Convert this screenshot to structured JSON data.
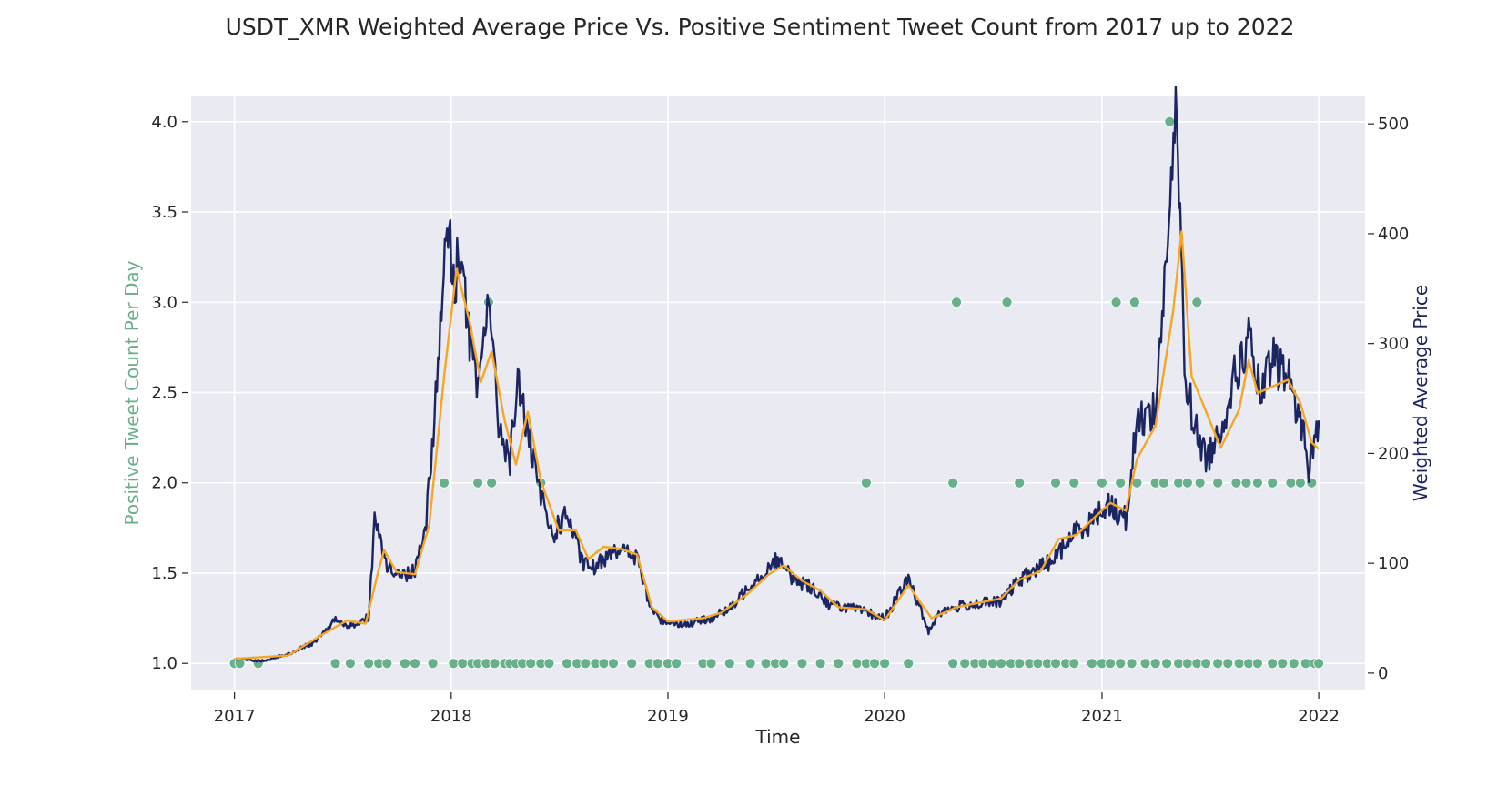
{
  "chart_data": {
    "type": "line+scatter",
    "title": "USDT_XMR Weighted Average Price Vs. Positive Sentiment Tweet Count from 2017 up to 2022",
    "xlabel": "Time",
    "ylabel_left": "Positive Tweet Count Per Day",
    "ylabel_right": "Weighted Average Price",
    "x_ticks": [
      "2017",
      "2018",
      "2019",
      "2020",
      "2021",
      "2022"
    ],
    "x_range": [
      "2016-10-20",
      "2022-03-20"
    ],
    "y_left_ticks": [
      "1.0",
      "1.5",
      "2.0",
      "2.5",
      "3.0",
      "3.5",
      "4.0"
    ],
    "y_left_range": [
      0.855,
      4.14
    ],
    "y_right_ticks": [
      "0",
      "100",
      "200",
      "300",
      "400",
      "500"
    ],
    "y_right_range": [
      -15,
      525
    ],
    "grid": true,
    "colors": {
      "background": "#eaeaf2",
      "price": "#1b2561",
      "rolling": "#f5a623",
      "tweets": "#68b08b",
      "left_label": "#68b08b",
      "right_label": "#1b2561"
    },
    "price_series": [
      [
        "2017-01-01",
        13
      ],
      [
        "2017-02-15",
        11
      ],
      [
        "2017-04-01",
        17
      ],
      [
        "2017-05-15",
        28
      ],
      [
        "2017-06-20",
        48
      ],
      [
        "2017-07-20",
        42
      ],
      [
        "2017-08-15",
        52
      ],
      [
        "2017-08-25",
        140
      ],
      [
        "2017-09-15",
        98
      ],
      [
        "2017-10-10",
        88
      ],
      [
        "2017-11-01",
        95
      ],
      [
        "2017-11-20",
        140
      ],
      [
        "2017-12-10",
        280
      ],
      [
        "2017-12-25",
        420
      ],
      [
        "2018-01-05",
        350
      ],
      [
        "2018-01-15",
        390
      ],
      [
        "2018-02-01",
        305
      ],
      [
        "2018-02-15",
        250
      ],
      [
        "2018-03-05",
        355
      ],
      [
        "2018-03-20",
        230
      ],
      [
        "2018-04-10",
        195
      ],
      [
        "2018-04-25",
        270
      ],
      [
        "2018-05-10",
        215
      ],
      [
        "2018-06-01",
        160
      ],
      [
        "2018-06-20",
        125
      ],
      [
        "2018-07-15",
        145
      ],
      [
        "2018-08-10",
        100
      ],
      [
        "2018-09-01",
        95
      ],
      [
        "2018-10-01",
        115
      ],
      [
        "2018-11-10",
        105
      ],
      [
        "2018-12-01",
        62
      ],
      [
        "2018-12-20",
        48
      ],
      [
        "2019-02-01",
        44
      ],
      [
        "2019-03-15",
        50
      ],
      [
        "2019-04-20",
        60
      ],
      [
        "2019-05-20",
        82
      ],
      [
        "2019-06-15",
        92
      ],
      [
        "2019-07-01",
        105
      ],
      [
        "2019-08-01",
        85
      ],
      [
        "2019-09-01",
        78
      ],
      [
        "2019-10-01",
        62
      ],
      [
        "2019-11-01",
        60
      ],
      [
        "2019-12-01",
        55
      ],
      [
        "2020-01-01",
        50
      ],
      [
        "2020-02-10",
        86
      ],
      [
        "2020-03-15",
        38
      ],
      [
        "2020-04-01",
        55
      ],
      [
        "2020-05-15",
        62
      ],
      [
        "2020-07-15",
        65
      ],
      [
        "2020-08-15",
        85
      ],
      [
        "2020-09-15",
        95
      ],
      [
        "2020-10-15",
        105
      ],
      [
        "2020-11-15",
        128
      ],
      [
        "2020-12-15",
        138
      ],
      [
        "2021-01-10",
        155
      ],
      [
        "2021-02-10",
        140
      ],
      [
        "2021-03-01",
        230
      ],
      [
        "2021-04-01",
        240
      ],
      [
        "2021-04-20",
        385
      ],
      [
        "2021-05-07",
        510
      ],
      [
        "2021-05-20",
        280
      ],
      [
        "2021-06-05",
        225
      ],
      [
        "2021-06-25",
        195
      ],
      [
        "2021-07-15",
        215
      ],
      [
        "2021-08-10",
        265
      ],
      [
        "2021-09-05",
        305
      ],
      [
        "2021-09-25",
        250
      ],
      [
        "2021-10-15",
        285
      ],
      [
        "2021-11-10",
        270
      ],
      [
        "2021-12-01",
        232
      ],
      [
        "2021-12-15",
        188
      ],
      [
        "2022-01-01",
        230
      ]
    ],
    "rolling_series": [
      [
        "2017-01-01",
        13
      ],
      [
        "2017-04-01",
        16
      ],
      [
        "2017-06-01",
        36
      ],
      [
        "2017-07-10",
        48
      ],
      [
        "2017-08-10",
        45
      ],
      [
        "2017-08-30",
        90
      ],
      [
        "2017-09-10",
        112
      ],
      [
        "2017-10-01",
        92
      ],
      [
        "2017-11-01",
        90
      ],
      [
        "2017-11-25",
        135
      ],
      [
        "2017-12-20",
        270
      ],
      [
        "2018-01-10",
        368
      ],
      [
        "2018-02-01",
        320
      ],
      [
        "2018-02-20",
        265
      ],
      [
        "2018-03-10",
        293
      ],
      [
        "2018-04-01",
        230
      ],
      [
        "2018-04-20",
        190
      ],
      [
        "2018-05-10",
        238
      ],
      [
        "2018-06-01",
        175
      ],
      [
        "2018-07-01",
        130
      ],
      [
        "2018-07-30",
        130
      ],
      [
        "2018-08-20",
        104
      ],
      [
        "2018-09-15",
        115
      ],
      [
        "2018-10-15",
        113
      ],
      [
        "2018-11-10",
        108
      ],
      [
        "2018-12-05",
        60
      ],
      [
        "2019-01-01",
        47
      ],
      [
        "2019-03-01",
        50
      ],
      [
        "2019-04-01",
        55
      ],
      [
        "2019-05-15",
        72
      ],
      [
        "2019-06-20",
        90
      ],
      [
        "2019-07-15",
        98
      ],
      [
        "2019-08-15",
        84
      ],
      [
        "2019-09-15",
        75
      ],
      [
        "2019-10-15",
        60
      ],
      [
        "2019-12-01",
        58
      ],
      [
        "2020-01-01",
        48
      ],
      [
        "2020-02-10",
        80
      ],
      [
        "2020-03-20",
        50
      ],
      [
        "2020-05-01",
        60
      ],
      [
        "2020-07-15",
        68
      ],
      [
        "2020-08-15",
        85
      ],
      [
        "2020-09-20",
        93
      ],
      [
        "2020-10-20",
        122
      ],
      [
        "2020-11-20",
        126
      ],
      [
        "2020-12-20",
        142
      ],
      [
        "2021-01-15",
        155
      ],
      [
        "2021-02-10",
        148
      ],
      [
        "2021-03-01",
        195
      ],
      [
        "2021-04-01",
        225
      ],
      [
        "2021-05-01",
        330
      ],
      [
        "2021-05-15",
        402
      ],
      [
        "2021-06-01",
        270
      ],
      [
        "2021-06-20",
        245
      ],
      [
        "2021-07-20",
        205
      ],
      [
        "2021-08-20",
        240
      ],
      [
        "2021-09-05",
        285
      ],
      [
        "2021-09-20",
        255
      ],
      [
        "2021-10-20",
        262
      ],
      [
        "2021-11-10",
        267
      ],
      [
        "2021-12-01",
        246
      ],
      [
        "2021-12-20",
        210
      ],
      [
        "2022-01-01",
        204
      ]
    ],
    "tweet_points": {
      "count_1": [
        "2017-01-01",
        "2017-01-10",
        "2017-02-10",
        "2017-06-20",
        "2017-07-15",
        "2017-08-15",
        "2017-09-01",
        "2017-09-15",
        "2017-10-15",
        "2017-11-01",
        "2017-12-01",
        "2018-01-05",
        "2018-01-20",
        "2018-02-05",
        "2018-02-15",
        "2018-03-01",
        "2018-03-15",
        "2018-04-01",
        "2018-04-10",
        "2018-04-20",
        "2018-05-01",
        "2018-05-15",
        "2018-06-01",
        "2018-06-15",
        "2018-07-15",
        "2018-08-01",
        "2018-08-15",
        "2018-09-01",
        "2018-09-15",
        "2018-10-01",
        "2018-11-01",
        "2018-12-01",
        "2018-12-15",
        "2019-01-01",
        "2019-01-15",
        "2019-03-01",
        "2019-03-15",
        "2019-04-15",
        "2019-05-20",
        "2019-06-15",
        "2019-07-01",
        "2019-07-15",
        "2019-08-15",
        "2019-09-15",
        "2019-10-15",
        "2019-11-15",
        "2019-12-01",
        "2019-12-15",
        "2020-01-01",
        "2020-02-10",
        "2020-04-25",
        "2020-05-15",
        "2020-06-01",
        "2020-06-15",
        "2020-07-01",
        "2020-07-15",
        "2020-08-01",
        "2020-08-15",
        "2020-09-01",
        "2020-09-15",
        "2020-10-01",
        "2020-10-15",
        "2020-11-01",
        "2020-11-15",
        "2020-12-15",
        "2021-01-01",
        "2021-01-15",
        "2021-02-01",
        "2021-02-20",
        "2021-03-15",
        "2021-04-01",
        "2021-04-20",
        "2021-05-10",
        "2021-05-25",
        "2021-06-10",
        "2021-06-25",
        "2021-07-15",
        "2021-08-01",
        "2021-08-20",
        "2021-09-05",
        "2021-09-20",
        "2021-10-15",
        "2021-11-01",
        "2021-11-20",
        "2021-12-10",
        "2021-12-25",
        "2022-01-01"
      ],
      "count_2": [
        "2017-12-20",
        "2018-02-15",
        "2018-03-10",
        "2018-06-01",
        "2019-12-01",
        "2020-04-25",
        "2020-08-15",
        "2020-10-15",
        "2020-11-15",
        "2021-01-01",
        "2021-02-01",
        "2021-03-01",
        "2021-04-01",
        "2021-04-15",
        "2021-05-10",
        "2021-05-25",
        "2021-06-15",
        "2021-07-15",
        "2021-08-15",
        "2021-09-01",
        "2021-09-20",
        "2021-10-15",
        "2021-11-15",
        "2021-12-01",
        "2021-12-20"
      ],
      "count_3": [
        "2018-03-05",
        "2020-05-01",
        "2020-07-25",
        "2021-01-25",
        "2021-02-25",
        "2021-06-10"
      ],
      "count_4": [
        "2021-04-25"
      ]
    }
  }
}
